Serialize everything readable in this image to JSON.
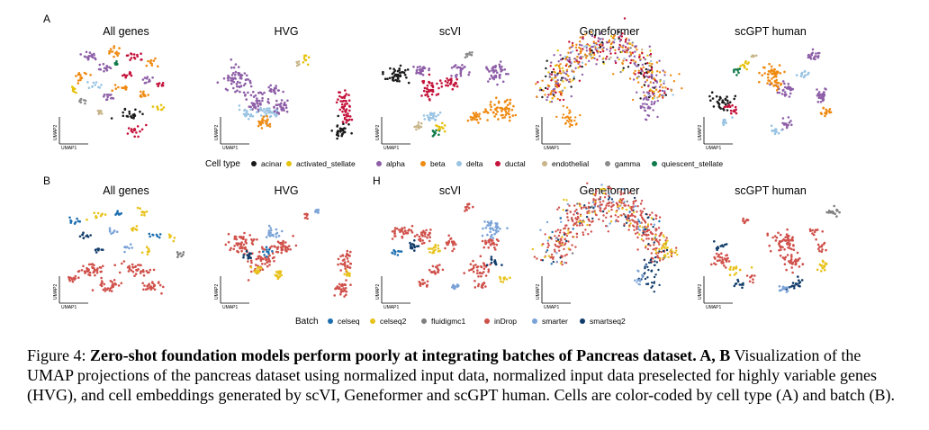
{
  "figure": {
    "row_a": {
      "letter": "A",
      "titles": [
        "All genes",
        "HVG",
        "scVI",
        "Geneformer",
        "scGPT human"
      ],
      "legend": {
        "title": "Cell type",
        "items": [
          {
            "label": "acinar",
            "color": "#1a1a1a"
          },
          {
            "label": "activated_stellate",
            "color": "#e6c20a"
          },
          {
            "label": "alpha",
            "color": "#8e5fa8"
          },
          {
            "label": "beta",
            "color": "#ef8a12"
          },
          {
            "label": "delta",
            "color": "#9ac4e3"
          },
          {
            "label": "ductal",
            "color": "#c4123a"
          },
          {
            "label": "endothelial",
            "color": "#c8b68a"
          },
          {
            "label": "gamma",
            "color": "#8c8c8c"
          },
          {
            "label": "quiescent_stellate",
            "color": "#0f7a4a"
          }
        ]
      }
    },
    "row_b": {
      "letter": "B",
      "extra_letter": "H",
      "titles": [
        "All genes",
        "HVG",
        "scVI",
        "Geneformer",
        "scGPT human"
      ],
      "legend": {
        "title": "Batch",
        "items": [
          {
            "label": "celseq",
            "color": "#1d6fb0"
          },
          {
            "label": "celseq2",
            "color": "#e8c21a"
          },
          {
            "label": "fluidigmc1",
            "color": "#7f7f7f"
          },
          {
            "label": "inDrop",
            "color": "#d0504a"
          },
          {
            "label": "smarter",
            "color": "#7ba3d8"
          },
          {
            "label": "smartseq2",
            "color": "#123d6b"
          }
        ]
      }
    },
    "axis": {
      "x_label": "UMAP1",
      "y_label": "UMAP2"
    }
  },
  "caption": {
    "label": "Figure 4:",
    "bold_text": "Zero-shot foundation models perform poorly at integrating batches of Pancreas dataset. A, B",
    "body_text": "Visualization of the UMAP projections of the pancreas dataset using normalized input data, normalized input data preselected for highly variable genes (HVG), and cell embeddings generated by scVI, Geneformer and scGPT human. Cells are color-coded by cell type (A) and batch (B)."
  }
}
